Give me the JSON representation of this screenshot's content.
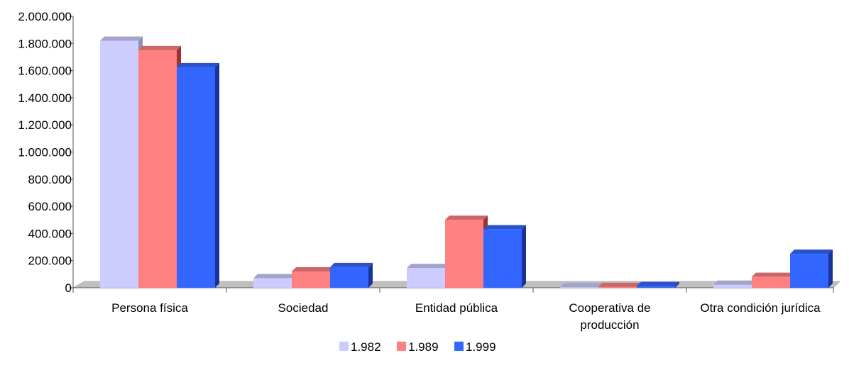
{
  "chart_data": {
    "type": "bar",
    "title": "",
    "xlabel": "",
    "ylabel": "",
    "categories": [
      [
        "Persona física"
      ],
      [
        "Sociedad"
      ],
      [
        "Entidad pública"
      ],
      [
        "Cooperativa de",
        "producción"
      ],
      [
        "Otra condición jurídica"
      ]
    ],
    "series": [
      {
        "name": "1.982",
        "values": [
          1820000,
          70000,
          145000,
          4000,
          22000
        ]
      },
      {
        "name": "1.989",
        "values": [
          1750000,
          120000,
          500000,
          6000,
          80000
        ]
      },
      {
        "name": "1.999",
        "values": [
          1625000,
          152000,
          430000,
          12000,
          250000
        ]
      }
    ],
    "ylim": [
      0,
      2000000
    ],
    "yticks": [
      "0",
      "200.000",
      "400.000",
      "600.000",
      "800.000",
      "1.000.000",
      "1.200.000",
      "1.400.000",
      "1.600.000",
      "1.800.000",
      "2.000.000"
    ],
    "grid": false,
    "legend_position": "bottom",
    "colors": {
      "1.982": {
        "front": "#ccccff",
        "top": "#a3a3cc",
        "side": "#8f8fb3"
      },
      "1.989": {
        "front": "#ff8080",
        "top": "#cc6666",
        "side": "#993333"
      },
      "1.999": {
        "front": "#3366ff",
        "top": "#2952cc",
        "side": "#1a3399"
      }
    },
    "floor_color": "#bfbfbf"
  }
}
